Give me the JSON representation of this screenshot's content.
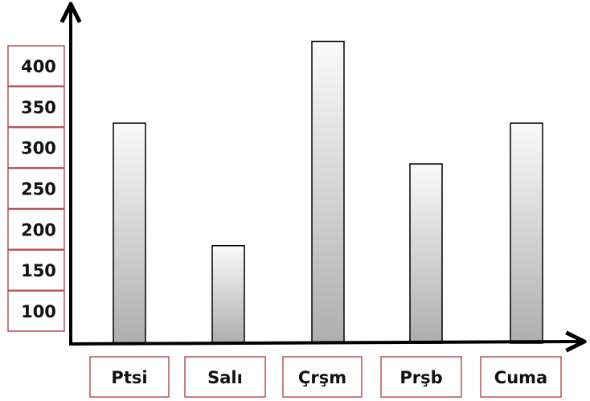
{
  "chart_data": {
    "type": "bar",
    "categories": [
      "Ptsi",
      "Salı",
      "Çrşm",
      "Prşb",
      "Cuma"
    ],
    "values": [
      330,
      180,
      430,
      280,
      330
    ],
    "y_tick_labels": [
      "100",
      "150",
      "200",
      "250",
      "300",
      "350",
      "400"
    ],
    "ylim": [
      50,
      460
    ],
    "title": "",
    "xlabel": "",
    "ylabel": "",
    "grid": false,
    "legend": "none",
    "colors": {
      "bar_top": "#fafafa",
      "bar_bottom": "#aeaeae",
      "bar_stroke": "#000000",
      "label_border": "#b55353",
      "axis": "#000000",
      "text": "#111111"
    }
  }
}
